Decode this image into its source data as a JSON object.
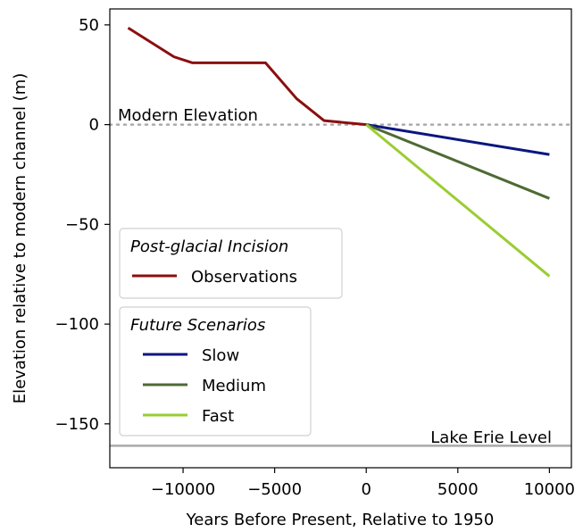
{
  "chart_data": {
    "type": "line",
    "xlabel": "Years Before Present, Relative to 1950",
    "ylabel": "Elevation relative to modern channel (m)",
    "xlim": [
      -14000,
      11200
    ],
    "ylim": [
      -172,
      58
    ],
    "xticks": [
      -10000,
      -5000,
      0,
      5000,
      10000
    ],
    "xtick_labels": [
      "−10000",
      "−5000",
      "0",
      "5000",
      "10000"
    ],
    "yticks": [
      50,
      0,
      -50,
      -100,
      -150
    ],
    "ytick_labels": [
      "50",
      "0",
      "−50",
      "−100",
      "−150"
    ],
    "grid": false,
    "series": [
      {
        "name": "Observations",
        "group": "Post-glacial Incision",
        "color": "#8b0f0f",
        "x": [
          -13000,
          -10500,
          -9500,
          -5500,
          -3800,
          -2300,
          0
        ],
        "y": [
          48.5,
          34,
          31,
          31,
          13,
          2,
          0
        ]
      },
      {
        "name": "Slow",
        "group": "Future Scenarios",
        "color": "#0a1680",
        "x": [
          0,
          10000
        ],
        "y": [
          0,
          -15
        ]
      },
      {
        "name": "Medium",
        "group": "Future Scenarios",
        "color": "#4e6a34",
        "x": [
          0,
          10000
        ],
        "y": [
          0,
          -37
        ]
      },
      {
        "name": "Fast",
        "group": "Future Scenarios",
        "color": "#9acd32",
        "x": [
          0,
          10000
        ],
        "y": [
          0,
          -76
        ]
      }
    ],
    "reference_lines": [
      {
        "label": "Modern Elevation",
        "y": 0,
        "style": "dotted",
        "color": "#aaaaaa"
      },
      {
        "label": "Lake Erie Level",
        "y": -161,
        "style": "solid",
        "color": "#aaaaaa"
      }
    ],
    "legends": [
      {
        "title": "Post-glacial Incision",
        "entries": [
          "Observations"
        ]
      },
      {
        "title": "Future Scenarios",
        "entries": [
          "Slow",
          "Medium",
          "Fast"
        ]
      }
    ]
  }
}
